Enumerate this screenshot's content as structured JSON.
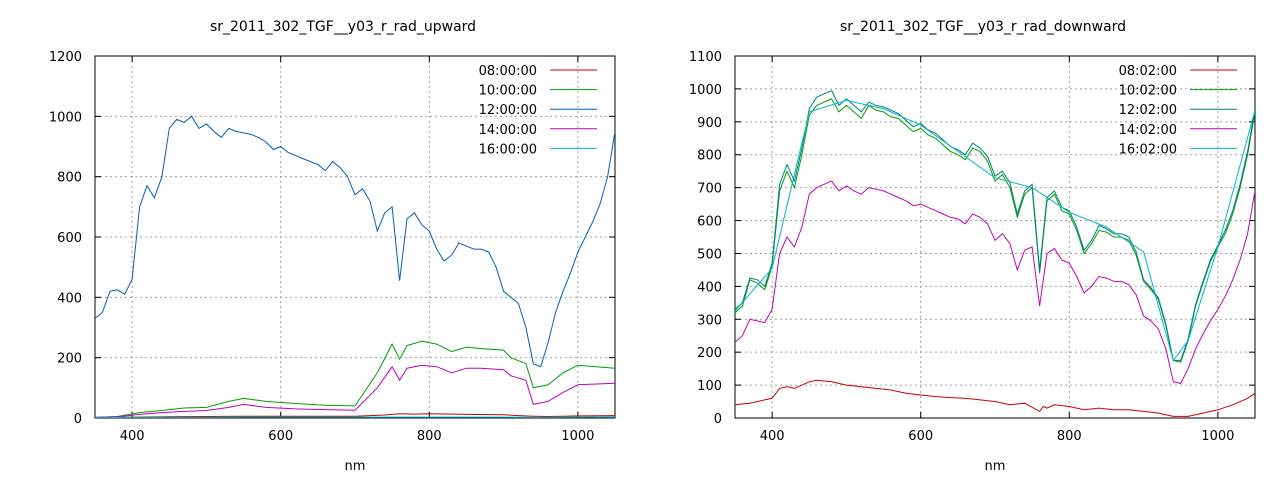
{
  "chart_data": [
    {
      "type": "line",
      "title": "sr_2011_302_TGF__y03_r_rad_upward",
      "xlabel": "nm",
      "ylabel": "",
      "xlim": [
        350,
        1050
      ],
      "ylim": [
        0,
        1200
      ],
      "xticks": [
        400,
        600,
        800,
        1000
      ],
      "yticks": [
        0,
        200,
        400,
        600,
        800,
        1000,
        1200
      ],
      "grid": true,
      "legend": "top-right",
      "series": [
        {
          "name": "08:00:00",
          "color": "#cc0000",
          "x": [
            350,
            400,
            450,
            500,
            550,
            600,
            650,
            700,
            740,
            760,
            780,
            800,
            850,
            900,
            920,
            940,
            960,
            980,
            1000,
            1050
          ],
          "y": [
            2,
            3,
            4,
            5,
            6,
            6,
            6,
            6,
            10,
            14,
            13,
            14,
            12,
            11,
            8,
            6,
            5,
            6,
            7,
            8
          ]
        },
        {
          "name": "10:00:00",
          "color": "#00a000",
          "x": [
            350,
            380,
            410,
            440,
            470,
            500,
            530,
            550,
            580,
            620,
            660,
            700,
            730,
            750,
            760,
            770,
            790,
            810,
            830,
            850,
            870,
            900,
            910,
            930,
            940,
            960,
            980,
            1000,
            1050
          ],
          "y": [
            2,
            5,
            18,
            25,
            33,
            35,
            55,
            65,
            55,
            48,
            42,
            40,
            150,
            245,
            195,
            240,
            255,
            245,
            220,
            235,
            230,
            225,
            200,
            180,
            100,
            110,
            150,
            175,
            165
          ]
        },
        {
          "name": "12:00:00",
          "color": "#0060c0",
          "x": [
            350,
            360,
            370,
            380,
            390,
            400,
            410,
            420,
            430,
            440,
            450,
            460,
            470,
            480,
            490,
            500,
            510,
            520,
            530,
            540,
            550,
            560,
            570,
            580,
            590,
            600,
            610,
            620,
            630,
            640,
            650,
            660,
            670,
            680,
            690,
            700,
            710,
            720,
            730,
            740,
            750,
            760,
            770,
            780,
            790,
            800,
            810,
            820,
            830,
            840,
            850,
            860,
            870,
            880,
            890,
            900,
            910,
            920,
            930,
            940,
            950,
            960,
            970,
            980,
            990,
            1000,
            1010,
            1020,
            1030,
            1040,
            1050
          ],
          "y": [
            330,
            350,
            420,
            425,
            410,
            460,
            700,
            770,
            730,
            800,
            960,
            990,
            980,
            1000,
            960,
            975,
            950,
            930,
            960,
            950,
            945,
            940,
            930,
            915,
            890,
            900,
            880,
            870,
            860,
            850,
            840,
            820,
            850,
            830,
            800,
            740,
            760,
            720,
            620,
            680,
            700,
            455,
            660,
            680,
            640,
            620,
            560,
            520,
            540,
            580,
            570,
            560,
            560,
            550,
            500,
            420,
            400,
            380,
            300,
            180,
            170,
            250,
            350,
            420,
            480,
            550,
            600,
            650,
            710,
            800,
            950
          ]
        },
        {
          "name": "14:00:00",
          "color": "#c000c0",
          "x": [
            350,
            380,
            410,
            440,
            470,
            500,
            530,
            550,
            580,
            620,
            660,
            700,
            730,
            750,
            760,
            770,
            790,
            810,
            830,
            850,
            870,
            900,
            910,
            930,
            940,
            960,
            980,
            1000,
            1050
          ],
          "y": [
            2,
            4,
            12,
            18,
            22,
            25,
            35,
            45,
            35,
            30,
            28,
            26,
            100,
            170,
            125,
            165,
            175,
            170,
            150,
            165,
            165,
            160,
            140,
            125,
            45,
            55,
            85,
            110,
            115
          ]
        },
        {
          "name": "16:00:00",
          "color": "#00b8c8",
          "x": [
            350,
            400,
            450,
            500,
            550,
            600,
            650,
            700,
            750,
            800,
            850,
            900,
            940,
            1000,
            1050
          ],
          "y": [
            1,
            2,
            2,
            2,
            3,
            3,
            3,
            3,
            3,
            3,
            3,
            3,
            2,
            3,
            4
          ]
        }
      ]
    },
    {
      "type": "line",
      "title": "sr_2011_302_TGF__y03_r_rad_downward",
      "xlabel": "nm",
      "ylabel": "",
      "xlim": [
        350,
        1050
      ],
      "ylim": [
        0,
        1100
      ],
      "xticks": [
        400,
        600,
        800,
        1000
      ],
      "yticks": [
        0,
        100,
        200,
        300,
        400,
        500,
        600,
        700,
        800,
        900,
        1000,
        1100
      ],
      "grid": true,
      "legend": "top-right",
      "series": [
        {
          "name": "08:02:00",
          "color": "#cc0000",
          "x": [
            350,
            370,
            390,
            400,
            410,
            420,
            430,
            440,
            450,
            460,
            480,
            500,
            520,
            540,
            560,
            580,
            600,
            620,
            640,
            660,
            680,
            700,
            720,
            740,
            760,
            765,
            770,
            780,
            800,
            820,
            840,
            860,
            880,
            900,
            920,
            940,
            960,
            980,
            1000,
            1020,
            1040,
            1050
          ],
          "y": [
            40,
            45,
            55,
            60,
            90,
            95,
            90,
            100,
            110,
            115,
            110,
            100,
            95,
            90,
            85,
            75,
            70,
            65,
            62,
            60,
            55,
            50,
            40,
            45,
            20,
            35,
            30,
            40,
            35,
            25,
            30,
            25,
            25,
            20,
            15,
            5,
            5,
            15,
            25,
            40,
            60,
            75
          ]
        },
        {
          "name": "10:02:00",
          "color": "#00a000",
          "x": [
            350,
            360,
            370,
            380,
            390,
            400,
            410,
            420,
            430,
            440,
            450,
            460,
            470,
            480,
            490,
            500,
            510,
            520,
            530,
            540,
            550,
            560,
            570,
            580,
            590,
            600,
            610,
            620,
            630,
            640,
            650,
            660,
            670,
            680,
            690,
            700,
            710,
            720,
            730,
            740,
            750,
            760,
            770,
            780,
            790,
            800,
            810,
            820,
            830,
            840,
            850,
            860,
            870,
            880,
            890,
            900,
            910,
            920,
            930,
            940,
            950,
            960,
            970,
            980,
            990,
            1000,
            1010,
            1020,
            1030,
            1040,
            1050
          ],
          "y": [
            320,
            340,
            420,
            410,
            390,
            460,
            690,
            750,
            700,
            800,
            920,
            950,
            960,
            970,
            930,
            950,
            930,
            910,
            950,
            935,
            930,
            915,
            910,
            890,
            870,
            880,
            860,
            850,
            830,
            810,
            800,
            785,
            820,
            810,
            780,
            720,
            740,
            700,
            610,
            680,
            700,
            440,
            660,
            680,
            630,
            620,
            570,
            500,
            530,
            570,
            565,
            550,
            550,
            540,
            495,
            415,
            390,
            360,
            280,
            175,
            170,
            235,
            340,
            410,
            475,
            520,
            560,
            620,
            700,
            800,
            930
          ]
        },
        {
          "name": "12:02:00",
          "color": "#008080",
          "x": [
            350,
            360,
            370,
            380,
            390,
            400,
            410,
            420,
            430,
            440,
            450,
            460,
            470,
            480,
            490,
            500,
            510,
            520,
            530,
            540,
            550,
            560,
            570,
            580,
            590,
            600,
            610,
            620,
            630,
            640,
            650,
            660,
            670,
            680,
            690,
            700,
            710,
            720,
            730,
            740,
            750,
            760,
            770,
            780,
            790,
            800,
            810,
            820,
            830,
            840,
            850,
            860,
            870,
            880,
            890,
            900,
            910,
            920,
            930,
            940,
            950,
            960,
            970,
            980,
            990,
            1000,
            1010,
            1020,
            1030,
            1040,
            1050
          ],
          "y": [
            330,
            350,
            425,
            420,
            400,
            470,
            710,
            770,
            720,
            820,
            940,
            975,
            985,
            995,
            950,
            970,
            950,
            930,
            960,
            950,
            945,
            935,
            925,
            905,
            885,
            895,
            875,
            865,
            845,
            825,
            815,
            800,
            835,
            820,
            795,
            735,
            750,
            715,
            620,
            690,
            710,
            450,
            670,
            690,
            640,
            630,
            580,
            510,
            540,
            585,
            575,
            560,
            560,
            550,
            505,
            420,
            395,
            365,
            285,
            175,
            175,
            240,
            345,
            415,
            480,
            525,
            570,
            630,
            710,
            810,
            940
          ]
        },
        {
          "name": "14:02:00",
          "color": "#c000c0",
          "x": [
            350,
            360,
            370,
            380,
            390,
            400,
            410,
            420,
            430,
            440,
            450,
            460,
            470,
            480,
            490,
            500,
            510,
            520,
            530,
            540,
            550,
            560,
            570,
            580,
            590,
            600,
            610,
            620,
            630,
            640,
            650,
            660,
            670,
            680,
            690,
            700,
            710,
            720,
            730,
            740,
            750,
            760,
            770,
            780,
            790,
            800,
            810,
            820,
            830,
            840,
            850,
            860,
            870,
            880,
            890,
            900,
            910,
            920,
            930,
            940,
            950,
            960,
            970,
            980,
            990,
            1000,
            1010,
            1020,
            1030,
            1040,
            1050
          ],
          "y": [
            230,
            250,
            300,
            295,
            290,
            330,
            500,
            550,
            520,
            580,
            680,
            700,
            710,
            720,
            690,
            705,
            690,
            680,
            700,
            695,
            690,
            680,
            670,
            660,
            645,
            650,
            640,
            630,
            620,
            610,
            605,
            590,
            620,
            610,
            590,
            540,
            560,
            530,
            450,
            510,
            520,
            340,
            500,
            515,
            480,
            470,
            430,
            380,
            400,
            430,
            425,
            415,
            415,
            405,
            375,
            310,
            295,
            270,
            210,
            110,
            105,
            150,
            210,
            255,
            295,
            330,
            370,
            420,
            480,
            560,
            690
          ]
        },
        {
          "name": "16:02:00",
          "color": "#00b8c8",
          "x": [
            350,
            400,
            450,
            500,
            550,
            600,
            650,
            700,
            750,
            800,
            850,
            900,
            940,
            960,
            1000,
            1050
          ],
          "y": [
            325,
            455,
            930,
            965,
            940,
            890,
            810,
            730,
            700,
            625,
            580,
            505,
            175,
            235,
            520,
            935
          ]
        }
      ]
    }
  ]
}
